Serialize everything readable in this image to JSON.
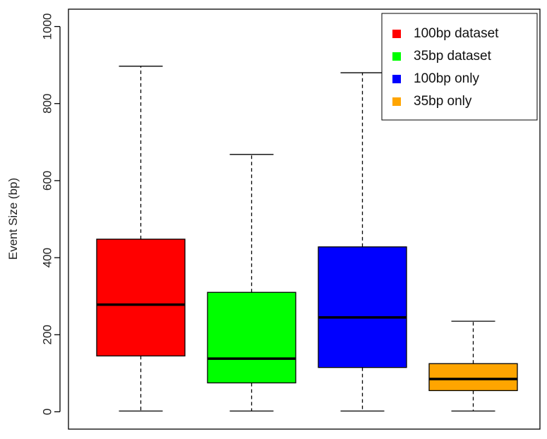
{
  "chart_data": {
    "type": "box",
    "title": "",
    "xlabel": "",
    "ylabel": "Event Size (bp)",
    "ylim": [
      -45,
      1045
    ],
    "yticks": [
      0,
      200,
      400,
      600,
      800,
      1000
    ],
    "grid": false,
    "legend_position": "top-right",
    "series": [
      {
        "name": "100bp dataset",
        "color": "#ff0000",
        "min": 2,
        "q1": 145,
        "median": 278,
        "q3": 448,
        "max": 897
      },
      {
        "name": "35bp dataset",
        "color": "#00ff00",
        "min": 2,
        "q1": 75,
        "median": 138,
        "q3": 310,
        "max": 668
      },
      {
        "name": "100bp only",
        "color": "#0000ff",
        "min": 2,
        "q1": 115,
        "median": 245,
        "q3": 428,
        "max": 880
      },
      {
        "name": "35bp only",
        "color": "#ffa500",
        "min": 2,
        "q1": 55,
        "median": 85,
        "q3": 125,
        "max": 235
      }
    ]
  }
}
